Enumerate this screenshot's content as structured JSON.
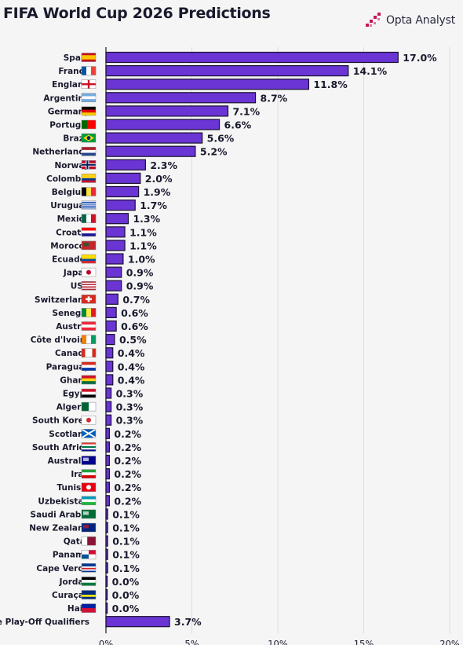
{
  "title": "FIFA World Cup 2026 Predictions",
  "brand": {
    "name": "Opta Analyst",
    "icon": "opta-logo-icon",
    "color": "#c2185b"
  },
  "colors": {
    "bar": "#6a35d4",
    "bar_border": "#1a1030",
    "grid": "#dddddd",
    "background": "#f5f5f5"
  },
  "chart_data": {
    "type": "bar",
    "orientation": "horizontal",
    "title": "FIFA World Cup 2026 Predictions",
    "xlabel": "",
    "ylabel": "",
    "unit": "%",
    "xlim": [
      0,
      20
    ],
    "xticks": [
      "0%",
      "5%",
      "10%",
      "15%",
      "20%"
    ],
    "grid": true,
    "categories": [
      "Spain",
      "France",
      "England",
      "Argentina",
      "Germany",
      "Portugal",
      "Brazil",
      "Netherlands",
      "Norway",
      "Colombia",
      "Belgium",
      "Uruguay",
      "Mexico",
      "Croatia",
      "Morocco",
      "Ecuador",
      "Japan",
      "USA",
      "Switzerland",
      "Senegal",
      "Austria",
      "Côte d'Ivoire",
      "Canada",
      "Paraguay",
      "Ghana",
      "Egypt",
      "Algeria",
      "South Korea",
      "Scotland",
      "South Africa",
      "Australia",
      "Iran",
      "Tunisia",
      "Uzbekistan",
      "Saudi Arabia",
      "New Zealand",
      "Qatar",
      "Panama",
      "Cape Verde",
      "Jordan",
      "Curaçao",
      "Haiti",
      "One of the Play-Off Qualifiers"
    ],
    "values": [
      17.0,
      14.1,
      11.8,
      8.7,
      7.1,
      6.6,
      5.6,
      5.2,
      2.3,
      2.0,
      1.9,
      1.7,
      1.3,
      1.1,
      1.1,
      1.0,
      0.9,
      0.9,
      0.7,
      0.6,
      0.6,
      0.5,
      0.4,
      0.4,
      0.4,
      0.3,
      0.3,
      0.3,
      0.2,
      0.2,
      0.2,
      0.2,
      0.2,
      0.2,
      0.1,
      0.1,
      0.1,
      0.1,
      0.1,
      0.0,
      0.0,
      0.0,
      3.7
    ],
    "value_labels": [
      "17.0%",
      "14.1%",
      "11.8%",
      "8.7%",
      "7.1%",
      "6.6%",
      "5.6%",
      "5.2%",
      "2.3%",
      "2.0%",
      "1.9%",
      "1.7%",
      "1.3%",
      "1.1%",
      "1.1%",
      "1.0%",
      "0.9%",
      "0.9%",
      "0.7%",
      "0.6%",
      "0.6%",
      "0.5%",
      "0.4%",
      "0.4%",
      "0.4%",
      "0.3%",
      "0.3%",
      "0.3%",
      "0.2%",
      "0.2%",
      "0.2%",
      "0.2%",
      "0.2%",
      "0.2%",
      "0.1%",
      "0.1%",
      "0.1%",
      "0.1%",
      "0.1%",
      "0.0%",
      "0.0%",
      "0.0%",
      "3.7%"
    ],
    "flags": [
      {
        "icon": "spain-flag-icon",
        "type": "h",
        "colors": [
          "#c60b1e",
          "#ffc400",
          "#ffc400",
          "#c60b1e"
        ]
      },
      {
        "icon": "france-flag-icon",
        "type": "v",
        "colors": [
          "#0055a4",
          "#ffffff",
          "#ef4135"
        ]
      },
      {
        "icon": "england-flag-icon",
        "type": "cross",
        "colors": [
          "#ffffff",
          "#ce1124"
        ]
      },
      {
        "icon": "argentina-flag-icon",
        "type": "h",
        "colors": [
          "#74acdf",
          "#ffffff",
          "#74acdf"
        ]
      },
      {
        "icon": "germany-flag-icon",
        "type": "h",
        "colors": [
          "#000000",
          "#dd0000",
          "#ffce00"
        ]
      },
      {
        "icon": "portugal-flag-icon",
        "type": "vw",
        "colors": [
          "#006600",
          "#ff0000"
        ]
      },
      {
        "icon": "brazil-flag-icon",
        "type": "diamond",
        "colors": [
          "#009c3b",
          "#ffdf00",
          "#002776"
        ]
      },
      {
        "icon": "netherlands-flag-icon",
        "type": "h",
        "colors": [
          "#ae1c28",
          "#ffffff",
          "#21468b"
        ]
      },
      {
        "icon": "norway-flag-icon",
        "type": "nordic",
        "colors": [
          "#ba0c2f",
          "#ffffff",
          "#00205b"
        ]
      },
      {
        "icon": "colombia-flag-icon",
        "type": "h",
        "colors": [
          "#fcd116",
          "#fcd116",
          "#003893",
          "#ce1126"
        ]
      },
      {
        "icon": "belgium-flag-icon",
        "type": "v",
        "colors": [
          "#000000",
          "#fae042",
          "#ed2939"
        ]
      },
      {
        "icon": "uruguay-flag-icon",
        "type": "h",
        "colors": [
          "#ffffff",
          "#0038a8",
          "#ffffff",
          "#0038a8",
          "#ffffff",
          "#0038a8",
          "#ffffff",
          "#0038a8",
          "#ffffff"
        ]
      },
      {
        "icon": "mexico-flag-icon",
        "type": "v",
        "colors": [
          "#006847",
          "#ffffff",
          "#ce1126"
        ]
      },
      {
        "icon": "croatia-flag-icon",
        "type": "h",
        "colors": [
          "#ff0000",
          "#ffffff",
          "#171796"
        ]
      },
      {
        "icon": "morocco-flag-icon",
        "type": "solid",
        "colors": [
          "#c1272d",
          "#006233"
        ]
      },
      {
        "icon": "ecuador-flag-icon",
        "type": "h",
        "colors": [
          "#ffdd00",
          "#ffdd00",
          "#034ea2",
          "#ed1c24"
        ]
      },
      {
        "icon": "japan-flag-icon",
        "type": "disc",
        "colors": [
          "#ffffff",
          "#bc002d"
        ]
      },
      {
        "icon": "usa-flag-icon",
        "type": "h",
        "colors": [
          "#b22234",
          "#ffffff",
          "#b22234",
          "#ffffff",
          "#b22234",
          "#ffffff",
          "#b22234"
        ]
      },
      {
        "icon": "switzerland-flag-icon",
        "type": "plus",
        "colors": [
          "#d52b1e",
          "#ffffff"
        ]
      },
      {
        "icon": "senegal-flag-icon",
        "type": "v",
        "colors": [
          "#00853f",
          "#fdef42",
          "#e31b23"
        ]
      },
      {
        "icon": "austria-flag-icon",
        "type": "h",
        "colors": [
          "#ed2939",
          "#ffffff",
          "#ed2939"
        ]
      },
      {
        "icon": "cote-divoire-flag-icon",
        "type": "v",
        "colors": [
          "#f77f00",
          "#ffffff",
          "#009e60"
        ]
      },
      {
        "icon": "canada-flag-icon",
        "type": "v",
        "colors": [
          "#d52b1e",
          "#ffffff",
          "#ffffff",
          "#d52b1e"
        ]
      },
      {
        "icon": "paraguay-flag-icon",
        "type": "h",
        "colors": [
          "#d52b1e",
          "#ffffff",
          "#0038a8"
        ]
      },
      {
        "icon": "ghana-flag-icon",
        "type": "h",
        "colors": [
          "#ce1126",
          "#fcd116",
          "#006b3f"
        ]
      },
      {
        "icon": "egypt-flag-icon",
        "type": "h",
        "colors": [
          "#ce1126",
          "#ffffff",
          "#000000"
        ]
      },
      {
        "icon": "algeria-flag-icon",
        "type": "v",
        "colors": [
          "#006233",
          "#ffffff"
        ]
      },
      {
        "icon": "south-korea-flag-icon",
        "type": "disc",
        "colors": [
          "#ffffff",
          "#cd2e3a"
        ]
      },
      {
        "icon": "scotland-flag-icon",
        "type": "saltire",
        "colors": [
          "#005eb8",
          "#ffffff"
        ]
      },
      {
        "icon": "south-africa-flag-icon",
        "type": "h",
        "colors": [
          "#e03c31",
          "#ffffff",
          "#007749",
          "#ffffff",
          "#001489"
        ]
      },
      {
        "icon": "australia-flag-icon",
        "type": "solid",
        "colors": [
          "#00008b",
          "#ffffff"
        ]
      },
      {
        "icon": "iran-flag-icon",
        "type": "h",
        "colors": [
          "#239f40",
          "#ffffff",
          "#da0000"
        ]
      },
      {
        "icon": "tunisia-flag-icon",
        "type": "disc",
        "colors": [
          "#e70013",
          "#ffffff"
        ]
      },
      {
        "icon": "uzbekistan-flag-icon",
        "type": "h",
        "colors": [
          "#0099b5",
          "#ffffff",
          "#1eb53a"
        ]
      },
      {
        "icon": "saudi-arabia-flag-icon",
        "type": "solid",
        "colors": [
          "#006c35",
          "#ffffff"
        ]
      },
      {
        "icon": "new-zealand-flag-icon",
        "type": "solid",
        "colors": [
          "#00247d",
          "#cc142b"
        ]
      },
      {
        "icon": "qatar-flag-icon",
        "type": "vw",
        "colors": [
          "#ffffff",
          "#8a1538"
        ]
      },
      {
        "icon": "panama-flag-icon",
        "type": "quad",
        "colors": [
          "#ffffff",
          "#d21034",
          "#005293",
          "#ffffff"
        ]
      },
      {
        "icon": "cape-verde-flag-icon",
        "type": "h",
        "colors": [
          "#003893",
          "#003893",
          "#ffffff",
          "#cf2027",
          "#ffffff",
          "#003893"
        ]
      },
      {
        "icon": "jordan-flag-icon",
        "type": "h",
        "colors": [
          "#000000",
          "#ffffff",
          "#007a3d"
        ]
      },
      {
        "icon": "curacao-flag-icon",
        "type": "h",
        "colors": [
          "#002b7f",
          "#002b7f",
          "#f9e814",
          "#002b7f"
        ]
      },
      {
        "icon": "haiti-flag-icon",
        "type": "h",
        "colors": [
          "#00209f",
          "#d21034"
        ]
      },
      {
        "icon": "none",
        "type": "none",
        "colors": []
      }
    ]
  }
}
